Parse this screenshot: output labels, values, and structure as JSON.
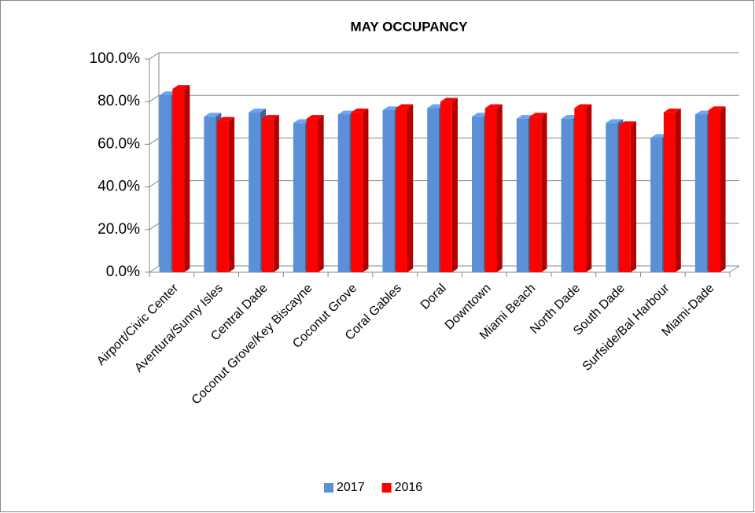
{
  "chart_data": {
    "type": "bar3d",
    "title": "MAY OCCUPANCY",
    "categories": [
      "Airport/Civic Center",
      "Aventura/Sunny Isles",
      "Central Dade",
      "Coconut Grove/Key Biscayne",
      "Coconut Grove",
      "Coral Gables",
      "Doral",
      "Downtown",
      "Miami Beach",
      "North Dade",
      "South Dade",
      "Surfside/Bal Harbour",
      "Miami-Dade"
    ],
    "series": [
      {
        "name": "2017",
        "color": "#5b8fd6",
        "values": [
          83,
          73,
          75,
          70,
          74,
          76,
          77,
          73,
          72,
          72,
          70,
          63,
          74
        ]
      },
      {
        "name": "2016",
        "color": "#ff0000",
        "values": [
          86,
          71,
          72,
          72,
          75,
          77,
          80,
          77,
          73,
          77,
          69,
          75,
          76
        ]
      }
    ],
    "ylim": [
      0,
      100
    ],
    "yticks": [
      {
        "value": 0,
        "label": "0.0%"
      },
      {
        "value": 20,
        "label": "20.0%"
      },
      {
        "value": 40,
        "label": "40.0%"
      },
      {
        "value": 60,
        "label": "60.0%"
      },
      {
        "value": 80,
        "label": "80.0%"
      },
      {
        "value": 100,
        "label": "100.0%"
      }
    ],
    "grid": true,
    "legend": "bottom"
  }
}
